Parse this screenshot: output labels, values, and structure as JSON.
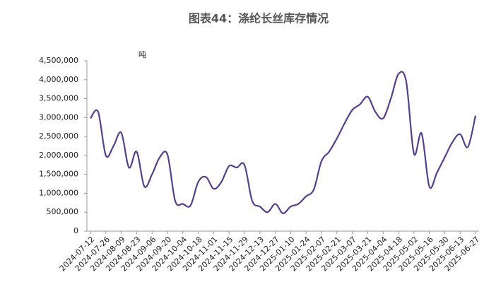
{
  "chart_data": {
    "type": "line",
    "title": "图表44：涤纶长丝库存情况",
    "unit_label": "吨",
    "categories": [
      "2024-07-12",
      null,
      "2024-07-26",
      null,
      "2024-08-09",
      null,
      "2024-08-23",
      null,
      "2024-09-06",
      null,
      "2024-09-20",
      null,
      "2024-10-04",
      null,
      "2024-10-18",
      null,
      "2024-11-01",
      null,
      "2024-11-15",
      null,
      "2024-11-29",
      null,
      "2024-12-13",
      null,
      "2024-12-27",
      null,
      "2025-01-10",
      null,
      "2025-01-24",
      null,
      "2025-02-07",
      null,
      "2025-02-21",
      null,
      "2025-03-07",
      null,
      "2025-03-21",
      null,
      "2025-04-04",
      null,
      "2025-04-18",
      null,
      "2025-05-02",
      null,
      "2025-05-16",
      null,
      "2025-05-30",
      null,
      "2025-06-13",
      null,
      "2025-06-27"
    ],
    "series": [
      {
        "name": "涤纶长丝库存",
        "color": "#583f8c",
        "values": [
          2980000,
          3150000,
          2000000,
          2250000,
          2600000,
          1680000,
          2100000,
          1180000,
          1500000,
          1950000,
          2020000,
          800000,
          720000,
          680000,
          1300000,
          1430000,
          1120000,
          1300000,
          1720000,
          1680000,
          1750000,
          800000,
          650000,
          500000,
          720000,
          470000,
          650000,
          720000,
          920000,
          1100000,
          1850000,
          2100000,
          2450000,
          2850000,
          3200000,
          3350000,
          3550000,
          3150000,
          2980000,
          3500000,
          4150000,
          3950000,
          2050000,
          2580000,
          1180000,
          1550000,
          1950000,
          2350000,
          2560000,
          2220000,
          3050000
        ]
      }
    ],
    "ylim": [
      0,
      4500000
    ],
    "yticks": [
      0,
      {
        "value": 500000,
        "label": "500,000"
      },
      {
        "value": 1000000,
        "label": "1,000,000"
      },
      {
        "value": 1500000,
        "label": "1,500,000"
      },
      {
        "value": 2000000,
        "label": "2,000,000"
      },
      {
        "value": 2500000,
        "label": "2,500,000"
      },
      {
        "value": 3000000,
        "label": "3,000,000"
      },
      {
        "value": 3500000,
        "label": "3,500,000"
      },
      {
        "value": 4000000,
        "label": "4,000,000"
      },
      {
        "value": 4500000,
        "label": "4,500,000"
      }
    ],
    "grid": false
  }
}
